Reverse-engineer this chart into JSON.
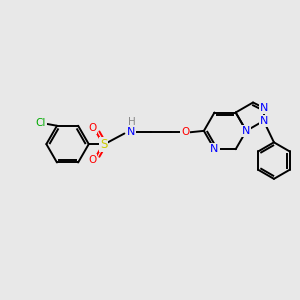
{
  "background_color": "#e8e8e8",
  "bond_color": "#000000",
  "atom_colors": {
    "N": "#0000ff",
    "O": "#ff0000",
    "S": "#cccc00",
    "Cl": "#00aa00",
    "H": "#888888",
    "C": "#000000"
  },
  "figsize": [
    3.0,
    3.0
  ],
  "dpi": 100,
  "lw": 1.4
}
